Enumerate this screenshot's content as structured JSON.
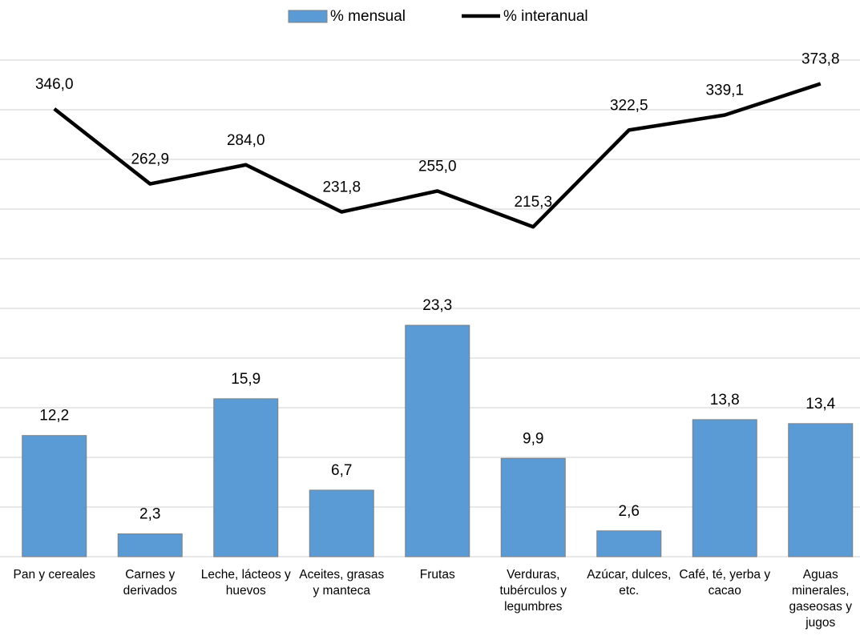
{
  "chart_data": {
    "type": "bar-line",
    "categories": [
      "Pan y cereales",
      "Carnes y derivados",
      "Leche, lácteos y huevos",
      "Aceites, grasas y manteca",
      "Frutas",
      "Verduras, tubérculos y legumbres",
      "Azúcar, dulces, etc.",
      "Café, té, yerba y cacao",
      "Aguas minerales, gaseosas y jugos"
    ],
    "series": [
      {
        "name": "% mensual",
        "type": "bar",
        "color": "#5b9bd5",
        "values": [
          12.2,
          2.3,
          15.9,
          6.7,
          23.3,
          9.9,
          2.6,
          13.8,
          13.4
        ],
        "value_labels": [
          "12,2",
          "2,3",
          "15,9",
          "6,7",
          "23,3",
          "9,9",
          "2,6",
          "13,8",
          "13,4"
        ]
      },
      {
        "name": "% interanual",
        "type": "line",
        "axis": "y2",
        "color": "#000000",
        "values": [
          346.0,
          262.9,
          284.0,
          231.8,
          255.0,
          215.3,
          322.5,
          339.1,
          373.8
        ],
        "value_labels": [
          "346,0",
          "262,9",
          "284,0",
          "231,8",
          "255,0",
          "215,3",
          "322,5",
          "339,1",
          "373,8"
        ]
      }
    ],
    "ylim": [
      0,
      50
    ],
    "yticks": [
      0,
      5,
      10,
      15,
      20,
      25,
      30,
      35,
      40,
      45,
      50
    ],
    "y2lim": [
      -150,
      400
    ],
    "grid": true,
    "legend": "top"
  }
}
